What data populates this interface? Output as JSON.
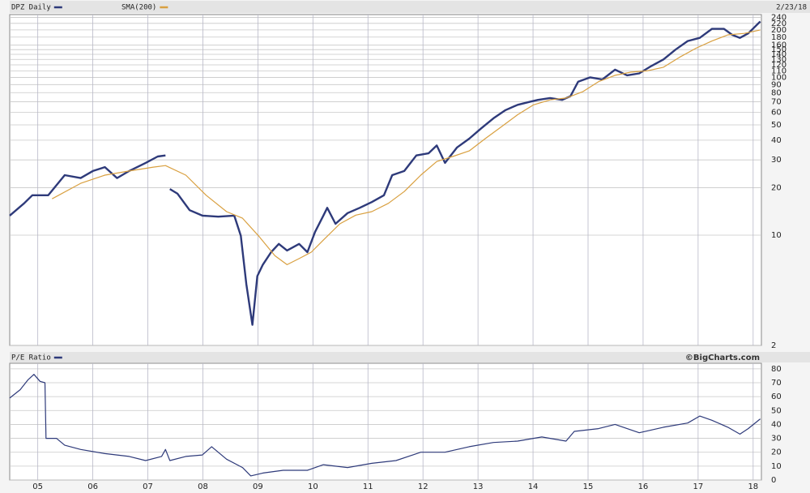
{
  "chart_data": [
    {
      "type": "line",
      "log_scale": true,
      "grid": true,
      "date_label": "2/23/18",
      "xlim": [
        2004.49,
        2018.15
      ],
      "ylim": [
        2,
        250
      ],
      "yticks": [
        2,
        10,
        20,
        30,
        40,
        50,
        60,
        70,
        80,
        90,
        100,
        110,
        120,
        130,
        140,
        150,
        160,
        180,
        200,
        220,
        240
      ],
      "series": [
        {
          "name": "DPZ Daily",
          "color": "#2e3a7a",
          "x": [
            2004.49,
            2004.75,
            2004.9,
            2005.19,
            2005.49,
            2005.78,
            2006.0,
            2006.22,
            2006.44,
            2006.66,
            2006.96,
            2007.18,
            2007.32,
            2007.36,
            2007.4,
            2007.54,
            2007.76,
            2007.99,
            2008.28,
            2008.57,
            2008.69,
            2008.79,
            2008.9,
            2008.99,
            2009.09,
            2009.24,
            2009.38,
            2009.53,
            2009.75,
            2009.9,
            2010.04,
            2010.19,
            2010.26,
            2010.41,
            2010.63,
            2010.85,
            2011.07,
            2011.29,
            2011.44,
            2011.66,
            2011.88,
            2012.1,
            2012.25,
            2012.4,
            2012.62,
            2012.84,
            2013.06,
            2013.28,
            2013.5,
            2013.72,
            2013.94,
            2014.09,
            2014.31,
            2014.53,
            2014.68,
            2014.82,
            2015.04,
            2015.26,
            2015.49,
            2015.71,
            2015.93,
            2016.15,
            2016.37,
            2016.59,
            2016.81,
            2017.03,
            2017.25,
            2017.47,
            2017.62,
            2017.76,
            2017.91,
            2018.13
          ],
          "values": [
            13.3,
            15.9,
            17.9,
            17.9,
            24,
            23,
            25.5,
            27,
            23,
            25.5,
            28.7,
            31.5,
            32,
            null,
            19.6,
            18.3,
            14.4,
            13.3,
            13.1,
            13.3,
            9.9,
            4.9,
            2.7,
            5.5,
            6.5,
            7.8,
            8.8,
            8.0,
            8.8,
            7.8,
            10.5,
            13.3,
            14.9,
            11.8,
            13.8,
            14.9,
            16.2,
            17.9,
            24,
            25.5,
            32,
            33,
            37,
            28.7,
            36,
            40.9,
            47.6,
            55,
            62,
            67,
            70,
            72,
            74,
            72,
            76,
            94,
            100,
            97,
            112,
            103,
            106,
            118,
            130,
            150,
            170,
            178,
            203,
            203,
            186,
            178,
            190,
            226
          ]
        },
        {
          "name": "SMA(200)",
          "color": "#d9a040",
          "x": [
            2005.26,
            2005.78,
            2006.22,
            2006.66,
            2007.1,
            2007.32,
            2007.69,
            2008.06,
            2008.43,
            2008.72,
            2009.01,
            2009.31,
            2009.53,
            2009.75,
            2009.97,
            2010.19,
            2010.49,
            2010.78,
            2011.07,
            2011.37,
            2011.66,
            2011.96,
            2012.25,
            2012.54,
            2012.84,
            2013.13,
            2013.43,
            2013.72,
            2014.01,
            2014.31,
            2014.6,
            2014.9,
            2015.19,
            2015.49,
            2015.78,
            2016.07,
            2016.37,
            2016.66,
            2016.96,
            2017.25,
            2017.54,
            2017.84,
            2018.13
          ],
          "values": [
            17,
            21.3,
            24,
            25.5,
            27,
            27.6,
            24,
            17.9,
            14.1,
            12.8,
            9.9,
            7.4,
            6.5,
            7.1,
            7.8,
            9.3,
            11.8,
            13.4,
            14.1,
            15.9,
            18.9,
            24,
            29.3,
            31.5,
            34.2,
            40.9,
            48.8,
            58,
            67,
            72,
            74,
            81,
            94,
            103,
            108,
            110,
            116,
            134,
            153,
            170,
            186,
            190,
            200
          ]
        }
      ]
    },
    {
      "type": "line",
      "grid": true,
      "watermark": "©BigCharts.com",
      "xlim": [
        2004.49,
        2018.15
      ],
      "ylim": [
        0,
        84
      ],
      "xticks": [
        {
          "value": 2005,
          "label": "05"
        },
        {
          "value": 2006,
          "label": "06"
        },
        {
          "value": 2007,
          "label": "07"
        },
        {
          "value": 2008,
          "label": "08"
        },
        {
          "value": 2009,
          "label": "09"
        },
        {
          "value": 2010,
          "label": "10"
        },
        {
          "value": 2011,
          "label": "11"
        },
        {
          "value": 2012,
          "label": "12"
        },
        {
          "value": 2013,
          "label": "13"
        },
        {
          "value": 2014,
          "label": "14"
        },
        {
          "value": 2015,
          "label": "15"
        },
        {
          "value": 2016,
          "label": "16"
        },
        {
          "value": 2017,
          "label": "17"
        },
        {
          "value": 2018,
          "label": "18"
        }
      ],
      "yticks": [
        0,
        10,
        20,
        30,
        40,
        50,
        60,
        70,
        80
      ],
      "series": [
        {
          "name": "P/E Ratio",
          "color": "#2e3a7a",
          "x": [
            2004.49,
            2004.68,
            2004.82,
            2004.93,
            2005.04,
            2005.13,
            2005.15,
            2005.34,
            2005.49,
            2005.78,
            2006.22,
            2006.66,
            2006.96,
            2007.25,
            2007.32,
            2007.4,
            2007.69,
            2007.99,
            2008.16,
            2008.43,
            2008.72,
            2008.87,
            2009.09,
            2009.46,
            2009.9,
            2010.19,
            2010.63,
            2011.07,
            2011.51,
            2011.96,
            2012.4,
            2012.84,
            2013.28,
            2013.72,
            2014.16,
            2014.6,
            2014.75,
            2015.19,
            2015.49,
            2015.93,
            2016.37,
            2016.81,
            2017.03,
            2017.25,
            2017.54,
            2017.76,
            2017.91,
            2018.13
          ],
          "values": [
            59,
            65,
            72,
            76,
            71,
            70,
            30,
            30,
            25,
            22,
            19,
            17,
            14,
            17,
            22,
            14,
            17,
            18,
            24,
            15,
            9,
            3,
            5,
            7,
            7,
            11,
            9,
            12,
            14,
            20,
            20,
            24,
            27,
            28,
            31,
            28,
            35,
            37,
            40,
            34,
            38,
            41,
            46,
            43,
            38,
            33,
            37,
            44
          ]
        }
      ]
    }
  ]
}
